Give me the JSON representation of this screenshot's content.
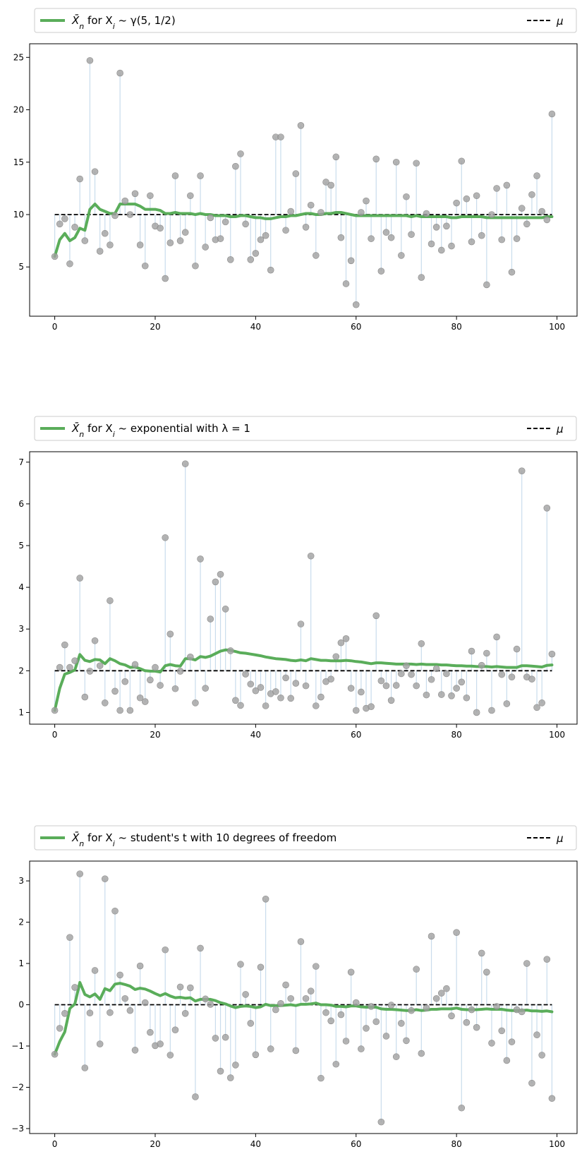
{
  "chart_data": [
    {
      "type": "line",
      "legend": {
        "series_label_prefix": "X̄",
        "series_label_sub": "n",
        "series_label_mid": " for X",
        "series_label_sub2": "i",
        "series_label_tail": " ~ γ(5, 1/2)",
        "mu_label": "μ",
        "placement": "top, outside"
      },
      "xlim": [
        -5,
        104
      ],
      "ylim": [
        0.3,
        26.3
      ],
      "x_ticks": [
        0,
        20,
        40,
        60,
        80,
        100
      ],
      "y_ticks": [
        5,
        10,
        15,
        20,
        25
      ],
      "mu": 10,
      "samples": [
        6.0,
        9.1,
        9.6,
        5.3,
        8.8,
        13.4,
        7.5,
        24.7,
        14.1,
        6.5,
        8.2,
        7.1,
        9.9,
        23.5,
        11.3,
        10.0,
        12.0,
        7.1,
        5.1,
        11.8,
        8.9,
        8.7,
        3.9,
        7.3,
        13.7,
        7.5,
        8.3,
        11.8,
        5.1,
        13.7,
        6.9,
        9.7,
        7.6,
        7.7,
        9.3,
        5.7,
        14.6,
        15.8,
        9.1,
        5.7,
        6.3,
        7.6,
        8.0,
        4.7,
        17.4,
        17.4,
        8.5,
        10.3,
        13.9,
        18.5,
        8.8,
        10.9,
        6.1,
        10.2,
        13.1,
        12.8,
        15.5,
        7.8,
        3.4,
        5.6,
        1.4,
        10.2,
        11.3,
        7.7,
        15.3,
        4.6,
        8.3,
        7.8,
        15.0,
        6.1,
        11.7,
        8.1,
        14.9,
        4.0,
        10.1,
        7.2,
        8.8,
        6.6,
        8.9,
        7.0,
        11.1,
        15.1,
        11.5,
        7.4,
        11.8,
        8.0,
        3.3,
        10.0,
        12.5,
        7.6,
        12.8,
        4.5,
        7.7,
        10.6,
        9.1,
        11.9,
        13.7,
        10.3,
        9.5,
        19.6
      ],
      "running_mean": [
        6.0,
        7.6,
        8.2,
        7.5,
        7.8,
        8.7,
        8.5,
        10.5,
        11.0,
        10.5,
        10.3,
        10.1,
        10.1,
        11.0,
        11.0,
        11.0,
        11.0,
        10.8,
        10.5,
        10.5,
        10.5,
        10.4,
        10.1,
        10.1,
        10.2,
        10.1,
        10.1,
        10.1,
        10.0,
        10.1,
        10.0,
        10.0,
        9.9,
        9.9,
        9.9,
        9.8,
        9.8,
        9.9,
        9.9,
        9.8,
        9.7,
        9.7,
        9.6,
        9.6,
        9.7,
        9.8,
        9.8,
        9.9,
        9.9,
        10.0,
        10.1,
        10.1,
        10.0,
        10.0,
        10.1,
        10.1,
        10.2,
        10.2,
        10.1,
        10.0,
        9.9,
        9.9,
        9.9,
        9.9,
        9.9,
        9.9,
        9.9,
        9.9,
        9.9,
        9.9,
        9.9,
        9.8,
        9.9,
        9.8,
        9.8,
        9.8,
        9.8,
        9.8,
        9.8,
        9.7,
        9.7,
        9.8,
        9.8,
        9.8,
        9.8,
        9.8,
        9.7,
        9.7,
        9.7,
        9.7,
        9.7,
        9.7,
        9.7,
        9.7,
        9.7,
        9.7,
        9.7,
        9.7,
        9.8,
        9.8
      ]
    },
    {
      "type": "line",
      "legend": {
        "series_label_prefix": "X̄",
        "series_label_sub": "n",
        "series_label_mid": " for X",
        "series_label_sub2": "i",
        "series_label_tail": " ~ exponential with λ = 1",
        "mu_label": "μ",
        "placement": "top, outside"
      },
      "xlim": [
        -5,
        104
      ],
      "ylim": [
        0.72,
        7.25
      ],
      "x_ticks": [
        0,
        20,
        40,
        60,
        80,
        100
      ],
      "y_ticks": [
        1,
        2,
        3,
        4,
        5,
        6,
        7
      ],
      "mu": 2,
      "samples": [
        1.05,
        2.08,
        2.62,
        2.08,
        2.24,
        4.22,
        1.37,
        1.99,
        2.72,
        2.12,
        1.23,
        3.68,
        1.51,
        1.05,
        1.74,
        1.05,
        2.15,
        1.35,
        1.26,
        1.78,
        2.08,
        1.65,
        5.19,
        2.88,
        1.57,
        1.99,
        6.96,
        2.33,
        1.23,
        4.68,
        1.58,
        3.24,
        4.13,
        4.31,
        3.48,
        2.48,
        1.29,
        1.17,
        1.92,
        1.68,
        1.52,
        1.6,
        1.16,
        1.45,
        1.5,
        1.35,
        1.83,
        1.34,
        1.7,
        3.12,
        1.64,
        4.75,
        1.16,
        1.37,
        1.74,
        1.8,
        2.34,
        2.67,
        2.77,
        1.58,
        1.05,
        1.49,
        1.1,
        1.14,
        3.32,
        1.76,
        1.64,
        1.29,
        1.65,
        1.93,
        2.12,
        1.91,
        1.64,
        2.65,
        1.42,
        1.79,
        2.05,
        1.43,
        1.93,
        1.4,
        1.58,
        1.73,
        1.35,
        2.47,
        1.0,
        2.13,
        2.42,
        1.05,
        2.81,
        1.91,
        1.21,
        1.85,
        2.52,
        6.79,
        1.85,
        1.8,
        1.12,
        1.23,
        5.9,
        2.4
      ],
      "running_mean": [
        1.05,
        1.58,
        1.92,
        1.96,
        2.02,
        2.39,
        2.25,
        2.22,
        2.27,
        2.26,
        2.17,
        2.29,
        2.24,
        2.17,
        2.14,
        2.08,
        2.09,
        2.05,
        2.0,
        1.99,
        1.99,
        1.97,
        2.12,
        2.15,
        2.12,
        2.11,
        2.29,
        2.29,
        2.26,
        2.34,
        2.32,
        2.35,
        2.41,
        2.47,
        2.5,
        2.49,
        2.46,
        2.43,
        2.42,
        2.4,
        2.38,
        2.36,
        2.33,
        2.31,
        2.29,
        2.28,
        2.27,
        2.25,
        2.24,
        2.26,
        2.24,
        2.29,
        2.27,
        2.25,
        2.25,
        2.24,
        2.24,
        2.24,
        2.25,
        2.24,
        2.22,
        2.21,
        2.19,
        2.17,
        2.19,
        2.19,
        2.18,
        2.17,
        2.16,
        2.16,
        2.16,
        2.16,
        2.15,
        2.16,
        2.15,
        2.15,
        2.15,
        2.14,
        2.14,
        2.13,
        2.12,
        2.12,
        2.11,
        2.11,
        2.1,
        2.1,
        2.1,
        2.09,
        2.1,
        2.09,
        2.08,
        2.08,
        2.08,
        2.12,
        2.12,
        2.11,
        2.1,
        2.09,
        2.13,
        2.14
      ]
    },
    {
      "type": "line",
      "legend": {
        "series_label_prefix": "X̄",
        "series_label_sub": "n",
        "series_label_mid": " for X",
        "series_label_sub2": "i",
        "series_label_tail": " ~ student's t with 10 degrees of freedom",
        "mu_label": "μ",
        "placement": "top, outside"
      },
      "xlim": [
        -5,
        104
      ],
      "ylim": [
        -3.12,
        3.48
      ],
      "x_ticks": [
        0,
        20,
        40,
        60,
        80,
        100
      ],
      "y_ticks": [
        -3,
        -2,
        -1,
        0,
        1,
        2,
        3
      ],
      "mu": 0,
      "samples": [
        -1.2,
        -0.57,
        -0.21,
        1.63,
        0.42,
        3.17,
        -1.53,
        -0.2,
        0.83,
        -0.95,
        3.05,
        -0.19,
        2.27,
        0.72,
        0.15,
        -0.14,
        -1.1,
        0.94,
        0.05,
        -0.67,
        -0.99,
        -0.95,
        1.33,
        -1.22,
        -0.61,
        0.43,
        -0.21,
        0.41,
        -2.23,
        1.37,
        0.14,
        0.01,
        -0.81,
        -1.61,
        -0.79,
        -1.77,
        -1.46,
        0.98,
        0.25,
        -0.45,
        -1.21,
        0.91,
        2.56,
        -1.07,
        -0.12,
        0.03,
        0.48,
        0.15,
        -1.11,
        1.53,
        0.15,
        0.33,
        0.93,
        -1.78,
        -0.19,
        -0.39,
        -1.44,
        -0.24,
        -0.88,
        0.79,
        0.05,
        -1.07,
        -0.57,
        -0.04,
        -0.41,
        -2.84,
        -0.76,
        -0.01,
        -1.26,
        -0.45,
        -0.87,
        -0.14,
        0.86,
        -1.18,
        -0.08,
        1.66,
        0.15,
        0.28,
        0.39,
        -0.27,
        1.75,
        -2.5,
        -0.43,
        -0.12,
        -0.55,
        1.25,
        0.79,
        -0.93,
        -0.04,
        -0.63,
        -1.35,
        -0.9,
        -0.12,
        -0.17,
        1.0,
        -1.9,
        -0.73,
        -1.22,
        1.1,
        -2.27
      ],
      "running_mean": [
        -1.2,
        -0.89,
        -0.66,
        -0.09,
        0.02,
        0.54,
        0.25,
        0.19,
        0.26,
        0.13,
        0.39,
        0.34,
        0.5,
        0.52,
        0.49,
        0.45,
        0.37,
        0.4,
        0.38,
        0.33,
        0.27,
        0.22,
        0.27,
        0.21,
        0.17,
        0.18,
        0.16,
        0.17,
        0.09,
        0.13,
        0.13,
        0.13,
        0.1,
        0.05,
        0.02,
        -0.03,
        -0.07,
        -0.04,
        -0.03,
        -0.04,
        -0.07,
        -0.05,
        0.01,
        -0.02,
        -0.02,
        -0.02,
        -0.01,
        0.0,
        -0.02,
        0.01,
        0.01,
        0.02,
        0.04,
        0.0,
        0.0,
        -0.01,
        -0.04,
        -0.04,
        -0.05,
        -0.03,
        -0.03,
        -0.05,
        -0.06,
        -0.06,
        -0.06,
        -0.1,
        -0.11,
        -0.11,
        -0.12,
        -0.13,
        -0.14,
        -0.14,
        -0.12,
        -0.14,
        -0.13,
        -0.11,
        -0.11,
        -0.1,
        -0.1,
        -0.1,
        -0.08,
        -0.11,
        -0.12,
        -0.12,
        -0.12,
        -0.11,
        -0.1,
        -0.11,
        -0.11,
        -0.11,
        -0.13,
        -0.14,
        -0.14,
        -0.14,
        -0.13,
        -0.15,
        -0.15,
        -0.16,
        -0.15,
        -0.17
      ]
    }
  ],
  "colors": {
    "running_mean": "#5aad5a",
    "sample_marker": "#a0a0a0",
    "stem": "#c9dcec",
    "mu_line": "#000000",
    "axes": "#000000",
    "legend_border": "#cccccc"
  }
}
